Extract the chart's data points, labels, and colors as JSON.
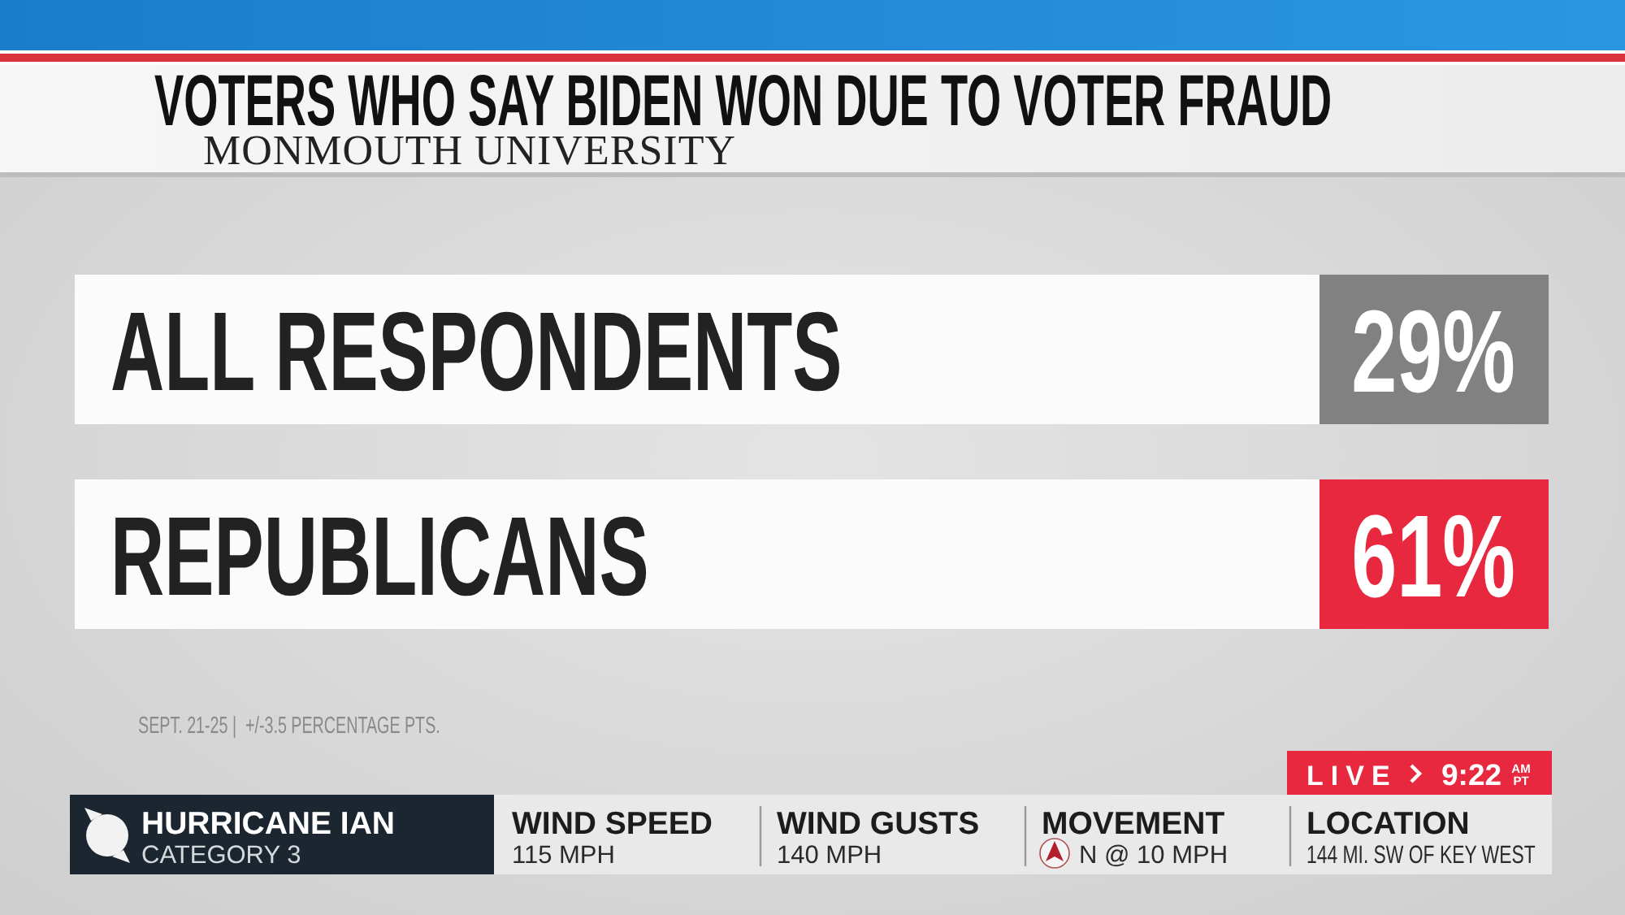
{
  "chart_data": {
    "type": "other",
    "title": "VOTERS WHO SAY BIDEN WON DUE TO VOTER FRAUD",
    "subtitle": "MONMOUTH UNIVERSITY",
    "categories": [
      "ALL RESPONDENTS",
      "REPUBLICANS"
    ],
    "values": [
      29,
      61
    ],
    "value_labels": [
      "29%",
      "61%"
    ],
    "colors": [
      "#818181",
      "#e8283e"
    ],
    "annotations": [
      "SEPT. 21-25 |  +/-3.5 PERCENTAGE PTS.",
      "HURRICANE IAN",
      "CATEGORY 3",
      "WIND SPEED",
      "115 MPH",
      "WIND GUSTS",
      "140 MPH",
      "MOVEMENT",
      "N @ 10 MPH",
      "LOCATION",
      "144 MI. SW OF KEY WEST",
      "LIVE",
      "9:22",
      "AM",
      "PT"
    ]
  }
}
